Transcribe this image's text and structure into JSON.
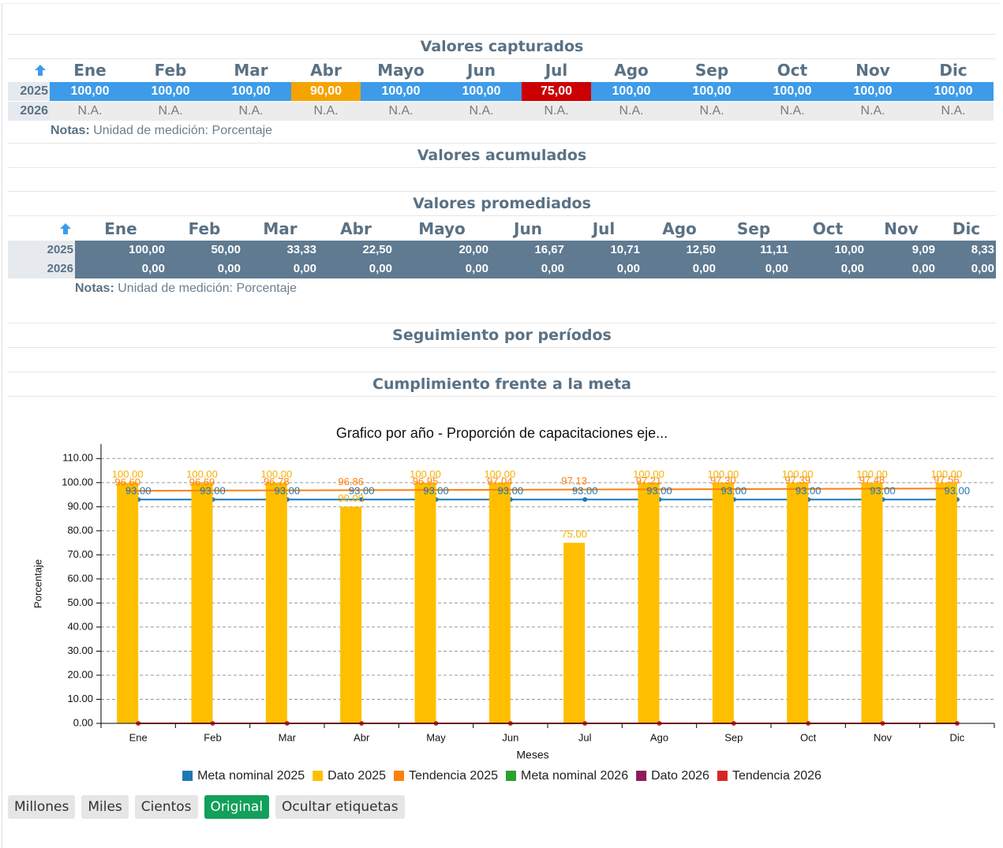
{
  "sections": [
    "Valores capturados",
    "Valores acumulados",
    "Valores promediados",
    "Seguimiento por períodos",
    "Cumplimiento frente a la meta"
  ],
  "table1": {
    "months": [
      "Ene",
      "Feb",
      "Mar",
      "Abr",
      "Mayo",
      "Jun",
      "Jul",
      "Ago",
      "Sep",
      "Oct",
      "Nov",
      "Dic"
    ],
    "rows": [
      {
        "year": "2025",
        "values": [
          "100,00",
          "100,00",
          "100,00",
          "90,00",
          "100,00",
          "100,00",
          "75,00",
          "100,00",
          "100,00",
          "100,00",
          "100,00",
          "100,00"
        ],
        "colors": [
          "#3d9be9",
          "#3d9be9",
          "#3d9be9",
          "#f5a300",
          "#3d9be9",
          "#3d9be9",
          "#cc0000",
          "#3d9be9",
          "#3d9be9",
          "#3d9be9",
          "#3d9be9",
          "#3d9be9"
        ]
      },
      {
        "year": "2026",
        "values": [
          "N.A.",
          "N.A.",
          "N.A.",
          "N.A.",
          "N.A.",
          "N.A.",
          "N.A.",
          "N.A.",
          "N.A.",
          "N.A.",
          "N.A.",
          "N.A."
        ]
      }
    ],
    "notes_label": "Notas:",
    "notes": "Unidad de medición: Porcentaje"
  },
  "table2": {
    "months": [
      "Ene",
      "Feb",
      "Mar",
      "Abr",
      "Mayo",
      "Jun",
      "Jul",
      "Ago",
      "Sep",
      "Oct",
      "Nov",
      "Dic"
    ],
    "rows": [
      {
        "year": "2025",
        "values": [
          "100,00",
          "50,00",
          "33,33",
          "22,50",
          "20,00",
          "16,67",
          "10,71",
          "12,50",
          "11,11",
          "10,00",
          "9,09",
          "8,33"
        ]
      },
      {
        "year": "2026",
        "values": [
          "0,00",
          "0,00",
          "0,00",
          "0,00",
          "0,00",
          "0,00",
          "0,00",
          "0,00",
          "0,00",
          "0,00",
          "0,00",
          "0,00"
        ]
      }
    ],
    "notes_label": "Notas:",
    "notes": "Unidad de medición: Porcentaje"
  },
  "chart_data": {
    "type": "bar",
    "title": "Grafico por año - Proporción de capacitaciones eje...",
    "x_label": "Meses",
    "y_label": "Porcentaje",
    "categories": [
      "Ene",
      "Feb",
      "Mar",
      "Abr",
      "May",
      "Jun",
      "Jul",
      "Ago",
      "Sep",
      "Oct",
      "Nov",
      "Dic"
    ],
    "ylim": [
      0,
      116
    ],
    "yticks": [
      {
        "value": 0,
        "label": "0.00"
      },
      {
        "value": 10,
        "label": "10.00"
      },
      {
        "value": 20,
        "label": "20.00"
      },
      {
        "value": 30,
        "label": "30.00"
      },
      {
        "value": 40,
        "label": "40.00"
      },
      {
        "value": 50,
        "label": "50.00"
      },
      {
        "value": 60,
        "label": "60.00"
      },
      {
        "value": 70,
        "label": "70.00"
      },
      {
        "value": 80,
        "label": "80.00"
      },
      {
        "value": 90,
        "label": "90.00"
      },
      {
        "value": 100,
        "label": "100.00"
      },
      {
        "value": 110,
        "label": "110.00"
      }
    ],
    "grid": true,
    "series": [
      {
        "name": "Meta nominal 2025",
        "color": "#1f77b4",
        "type": "line",
        "values": [
          93,
          93,
          93,
          93,
          93,
          93,
          93,
          93,
          93,
          93,
          93,
          93
        ],
        "value_labels": [
          "93.00",
          "93.00",
          "93.00",
          "93.00",
          "93.00",
          "93.00",
          "93.00",
          "93.00",
          "93.00",
          "93.00",
          "93.00",
          "93.00"
        ]
      },
      {
        "name": "Dato 2025",
        "color": "#ffbf00",
        "type": "bar",
        "values": [
          100,
          100,
          100,
          90,
          100,
          100,
          75,
          100,
          100,
          100,
          100,
          100
        ],
        "value_labels": [
          "100.00",
          "100.00",
          "100.00",
          "90.00",
          "100.00",
          "100.00",
          "75.00",
          "100.00",
          "100.00",
          "100.00",
          "100.00",
          "100.00"
        ]
      },
      {
        "name": "Tendencia 2025",
        "color": "#ff7f0e",
        "type": "line",
        "values": [
          96.6,
          96.69,
          96.78,
          96.86,
          96.95,
          97.04,
          97.13,
          97.21,
          97.3,
          97.39,
          97.48,
          97.56
        ],
        "value_labels": [
          "96.60",
          "96.69",
          "96.78",
          "96.86",
          "96.95",
          "97.04",
          "97.13",
          "97.21",
          "97.30",
          "97.39",
          "97.48",
          "97.56"
        ]
      },
      {
        "name": "Meta nominal 2026",
        "color": "#2ca02c",
        "type": "line",
        "values": [
          null,
          null,
          null,
          null,
          null,
          null,
          null,
          null,
          null,
          null,
          null,
          null
        ]
      },
      {
        "name": "Dato 2026",
        "color": "#8e1a5c",
        "type": "bar",
        "values": [
          0,
          0,
          0,
          0,
          0,
          0,
          0,
          0,
          0,
          0,
          0,
          0
        ]
      },
      {
        "name": "Tendencia 2026",
        "color": "#d62728",
        "type": "line",
        "values": [
          0,
          0,
          0,
          0,
          0,
          0,
          0,
          0,
          0,
          0,
          0,
          0
        ]
      }
    ]
  },
  "buttons": [
    "Millones",
    "Miles",
    "Cientos",
    "Original",
    "Ocultar etiquetas"
  ]
}
